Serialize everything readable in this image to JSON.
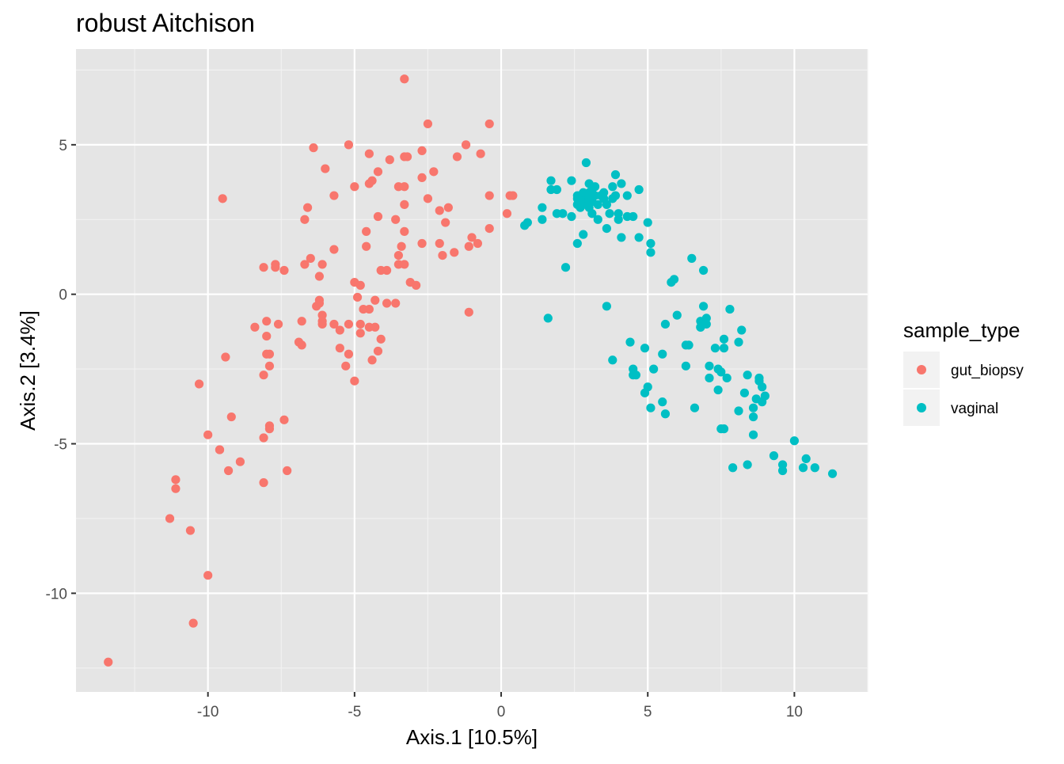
{
  "chart_data": {
    "type": "scatter",
    "title": "robust Aitchison",
    "xlabel": "Axis.1   [10.5%]",
    "ylabel": "Axis.2   [3.4%]",
    "xlim": [
      -14.5,
      12.5
    ],
    "ylim": [
      -13.3,
      8.2
    ],
    "x_ticks": [
      -10,
      -5,
      0,
      5,
      10
    ],
    "x_tick_labels": [
      "-10",
      "-5",
      "0",
      "5",
      "10"
    ],
    "y_ticks": [
      -10,
      -5,
      0,
      5
    ],
    "y_tick_labels": [
      "-10",
      "-5",
      "0",
      "5"
    ],
    "grid": true,
    "panel_background": "#e5e5e5",
    "legend": {
      "title": "sample_type",
      "position": "right"
    },
    "series": [
      {
        "name": "gut_biopsy",
        "color": "#f8766d",
        "points": [
          [
            -13.4,
            -12.3
          ],
          [
            -10.5,
            -11.0
          ],
          [
            -10.0,
            -9.4
          ],
          [
            -10.6,
            -7.9
          ],
          [
            -11.3,
            -7.5
          ],
          [
            -11.1,
            -6.5
          ],
          [
            -11.1,
            -6.2
          ],
          [
            -10.3,
            -3.0
          ],
          [
            -9.5,
            3.2
          ],
          [
            -9.4,
            -2.1
          ],
          [
            -9.2,
            -4.1
          ],
          [
            -10.0,
            -4.7
          ],
          [
            -9.6,
            -5.2
          ],
          [
            -9.6,
            -5.2
          ],
          [
            -9.3,
            -5.9
          ],
          [
            -8.9,
            -5.6
          ],
          [
            -8.1,
            -6.3
          ],
          [
            -8.1,
            -4.8
          ],
          [
            -7.9,
            -4.5
          ],
          [
            -7.9,
            -4.4
          ],
          [
            -7.4,
            -4.2
          ],
          [
            -7.3,
            -5.9
          ],
          [
            -8.1,
            -2.7
          ],
          [
            -8.0,
            -2.0
          ],
          [
            -7.9,
            -2.0
          ],
          [
            -7.9,
            -2.4
          ],
          [
            -8.0,
            -1.4
          ],
          [
            -8.0,
            -0.9
          ],
          [
            -8.4,
            -1.1
          ],
          [
            -6.9,
            -1.6
          ],
          [
            -6.8,
            -1.7
          ],
          [
            -6.8,
            -0.9
          ],
          [
            -7.6,
            -1.0
          ],
          [
            -7.4,
            0.8
          ],
          [
            -7.7,
            1.0
          ],
          [
            -7.7,
            0.9
          ],
          [
            -8.1,
            0.9
          ],
          [
            -6.7,
            1.0
          ],
          [
            -6.5,
            1.2
          ],
          [
            -6.1,
            1.0
          ],
          [
            -6.2,
            0.6
          ],
          [
            -5.7,
            1.5
          ],
          [
            -6.2,
            -0.2
          ],
          [
            -6.3,
            -0.4
          ],
          [
            -6.2,
            -0.3
          ],
          [
            -6.1,
            -0.7
          ],
          [
            -6.1,
            -0.9
          ],
          [
            -6.1,
            -1.0
          ],
          [
            -5.7,
            -1.0
          ],
          [
            -5.5,
            -1.2
          ],
          [
            -5.5,
            -1.8
          ],
          [
            -5.3,
            -2.4
          ],
          [
            -5.2,
            -2.0
          ],
          [
            -5.0,
            -2.9
          ],
          [
            -5.2,
            -1.0
          ],
          [
            -4.8,
            -1.0
          ],
          [
            -4.8,
            -1.3
          ],
          [
            -4.5,
            -1.1
          ],
          [
            -4.3,
            -1.1
          ],
          [
            -4.1,
            -1.5
          ],
          [
            -4.2,
            -1.9
          ],
          [
            -4.4,
            -2.2
          ],
          [
            -4.5,
            -0.5
          ],
          [
            -4.7,
            -0.5
          ],
          [
            -4.9,
            -0.1
          ],
          [
            -4.8,
            0.3
          ],
          [
            -5.0,
            0.4
          ],
          [
            -4.3,
            -0.2
          ],
          [
            -3.9,
            -0.3
          ],
          [
            -3.6,
            -0.3
          ],
          [
            -4.1,
            0.8
          ],
          [
            -3.9,
            0.8
          ],
          [
            -3.5,
            1.0
          ],
          [
            -3.3,
            1.0
          ],
          [
            -3.1,
            0.4
          ],
          [
            -2.9,
            0.3
          ],
          [
            -3.5,
            1.3
          ],
          [
            -3.4,
            1.6
          ],
          [
            -2.7,
            1.7
          ],
          [
            -2.1,
            1.7
          ],
          [
            -2.0,
            1.3
          ],
          [
            -1.6,
            1.4
          ],
          [
            -1.1,
            1.6
          ],
          [
            -0.8,
            1.7
          ],
          [
            -0.4,
            2.2
          ],
          [
            -1.0,
            1.9
          ],
          [
            -1.9,
            2.4
          ],
          [
            -2.1,
            2.8
          ],
          [
            -1.8,
            2.9
          ],
          [
            -4.6,
            1.6
          ],
          [
            -4.6,
            2.1
          ],
          [
            -4.2,
            2.6
          ],
          [
            -3.6,
            2.5
          ],
          [
            -3.3,
            2.1
          ],
          [
            -3.3,
            3.0
          ],
          [
            -6.6,
            2.9
          ],
          [
            -6.7,
            2.5
          ],
          [
            -5.7,
            3.3
          ],
          [
            -5.0,
            3.6
          ],
          [
            -4.5,
            3.7
          ],
          [
            -4.4,
            3.8
          ],
          [
            -3.5,
            3.6
          ],
          [
            -3.3,
            3.6
          ],
          [
            -2.7,
            3.9
          ],
          [
            -2.5,
            3.2
          ],
          [
            -2.3,
            4.1
          ],
          [
            -4.2,
            4.1
          ],
          [
            -3.8,
            4.5
          ],
          [
            -3.3,
            4.6
          ],
          [
            -3.2,
            4.6
          ],
          [
            -2.7,
            4.8
          ],
          [
            -1.5,
            4.6
          ],
          [
            -1.2,
            5.0
          ],
          [
            -0.7,
            4.7
          ],
          [
            -0.4,
            3.3
          ],
          [
            -0.4,
            5.7
          ],
          [
            -2.5,
            5.7
          ],
          [
            -3.3,
            7.2
          ],
          [
            -5.2,
            5.0
          ],
          [
            -6.4,
            4.9
          ],
          [
            -6.0,
            4.2
          ],
          [
            -4.5,
            4.7
          ],
          [
            0.2,
            2.7
          ],
          [
            0.3,
            3.3
          ],
          [
            0.4,
            3.3
          ],
          [
            -1.1,
            -0.6
          ]
        ]
      },
      {
        "name": "vaginal",
        "color": "#00bfc4",
        "points": [
          [
            0.8,
            2.3
          ],
          [
            0.9,
            2.4
          ],
          [
            1.4,
            2.5
          ],
          [
            1.4,
            2.9
          ],
          [
            1.7,
            3.5
          ],
          [
            1.7,
            3.8
          ],
          [
            1.9,
            3.5
          ],
          [
            1.9,
            2.7
          ],
          [
            2.1,
            2.7
          ],
          [
            2.4,
            2.6
          ],
          [
            2.4,
            3.8
          ],
          [
            2.6,
            1.7
          ],
          [
            2.6,
            3.0
          ],
          [
            2.6,
            3.2
          ],
          [
            2.7,
            2.9
          ],
          [
            2.7,
            3.3
          ],
          [
            2.8,
            3.1
          ],
          [
            2.8,
            2.0
          ],
          [
            2.9,
            4.4
          ],
          [
            2.9,
            3.2
          ],
          [
            3.0,
            3.7
          ],
          [
            3.0,
            2.9
          ],
          [
            3.1,
            3.1
          ],
          [
            3.1,
            3.5
          ],
          [
            3.1,
            2.7
          ],
          [
            3.2,
            3.6
          ],
          [
            3.3,
            3.0
          ],
          [
            3.3,
            2.5
          ],
          [
            3.4,
            3.3
          ],
          [
            3.5,
            3.2
          ],
          [
            3.5,
            3.4
          ],
          [
            3.6,
            2.2
          ],
          [
            3.6,
            3.0
          ],
          [
            3.7,
            2.7
          ],
          [
            3.8,
            3.2
          ],
          [
            3.8,
            3.6
          ],
          [
            3.9,
            3.3
          ],
          [
            3.9,
            4.0
          ],
          [
            4.0,
            2.5
          ],
          [
            4.0,
            2.7
          ],
          [
            4.1,
            3.7
          ],
          [
            4.1,
            1.9
          ],
          [
            4.3,
            3.3
          ],
          [
            4.3,
            2.6
          ],
          [
            4.5,
            2.6
          ],
          [
            4.7,
            3.5
          ],
          [
            4.7,
            1.9
          ],
          [
            5.0,
            2.4
          ],
          [
            5.1,
            1.7
          ],
          [
            5.1,
            1.4
          ],
          [
            2.2,
            0.9
          ],
          [
            1.6,
            -0.8
          ],
          [
            3.6,
            -0.4
          ],
          [
            3.8,
            -2.2
          ],
          [
            4.4,
            -1.6
          ],
          [
            4.5,
            -2.5
          ],
          [
            4.5,
            -2.7
          ],
          [
            4.6,
            -2.7
          ],
          [
            4.9,
            -1.8
          ],
          [
            4.9,
            -3.3
          ],
          [
            5.0,
            -3.1
          ],
          [
            5.1,
            -3.8
          ],
          [
            5.2,
            -2.5
          ],
          [
            5.5,
            -2.0
          ],
          [
            5.5,
            -3.6
          ],
          [
            5.6,
            -4.0
          ],
          [
            5.6,
            -1.0
          ],
          [
            5.8,
            0.4
          ],
          [
            5.9,
            0.5
          ],
          [
            6.0,
            -0.7
          ],
          [
            6.3,
            -1.7
          ],
          [
            6.4,
            -1.7
          ],
          [
            6.3,
            -2.4
          ],
          [
            6.5,
            1.2
          ],
          [
            6.6,
            -3.8
          ],
          [
            6.8,
            -0.9
          ],
          [
            6.8,
            -1.1
          ],
          [
            6.8,
            -1.1
          ],
          [
            6.9,
            -0.4
          ],
          [
            6.9,
            0.8
          ],
          [
            7.0,
            -0.8
          ],
          [
            7.0,
            -1.0
          ],
          [
            7.1,
            -2.4
          ],
          [
            7.1,
            -2.8
          ],
          [
            7.3,
            -1.8
          ],
          [
            7.4,
            -2.5
          ],
          [
            7.4,
            -3.2
          ],
          [
            7.5,
            -2.6
          ],
          [
            7.5,
            -4.5
          ],
          [
            7.6,
            -1.5
          ],
          [
            7.6,
            -1.8
          ],
          [
            7.6,
            -4.5
          ],
          [
            7.7,
            -2.8
          ],
          [
            7.8,
            -0.5
          ],
          [
            7.9,
            -5.8
          ],
          [
            8.1,
            -1.6
          ],
          [
            8.1,
            -3.9
          ],
          [
            8.2,
            -1.2
          ],
          [
            8.3,
            -3.3
          ],
          [
            8.4,
            -2.7
          ],
          [
            8.4,
            -5.7
          ],
          [
            8.6,
            -3.8
          ],
          [
            8.6,
            -4.1
          ],
          [
            8.6,
            -4.7
          ],
          [
            8.7,
            -3.5
          ],
          [
            8.8,
            -2.8
          ],
          [
            8.8,
            -2.9
          ],
          [
            8.9,
            -3.1
          ],
          [
            8.9,
            -3.6
          ],
          [
            9.0,
            -3.4
          ],
          [
            9.3,
            -5.4
          ],
          [
            9.6,
            -5.7
          ],
          [
            9.6,
            -5.9
          ],
          [
            10.0,
            -4.9
          ],
          [
            10.3,
            -5.8
          ],
          [
            10.4,
            -5.5
          ],
          [
            10.7,
            -5.8
          ],
          [
            11.3,
            -6.0
          ],
          [
            2.7,
            3.0
          ],
          [
            2.8,
            3.1
          ],
          [
            2.6,
            3.3
          ],
          [
            2.9,
            3.0
          ],
          [
            3.0,
            3.2
          ],
          [
            2.7,
            3.1
          ],
          [
            3.2,
            3.3
          ],
          [
            3.0,
            3.4
          ],
          [
            2.8,
            3.4
          ]
        ]
      }
    ]
  }
}
